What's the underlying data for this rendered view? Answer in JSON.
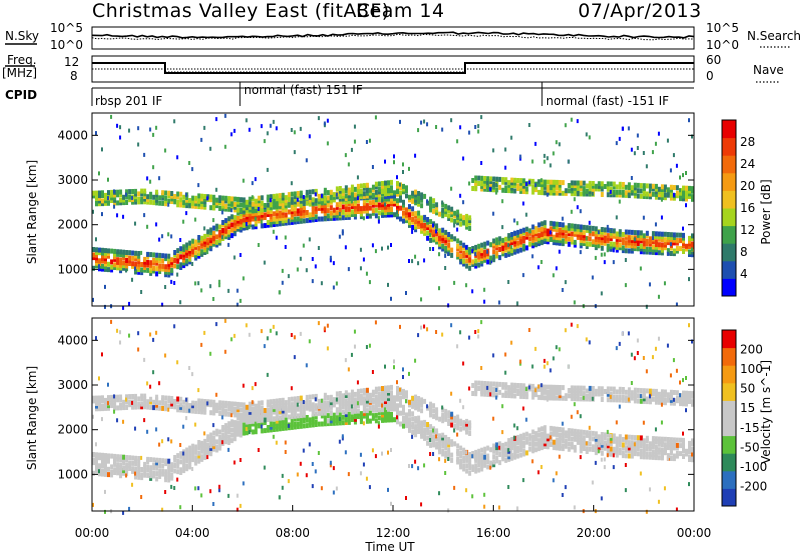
{
  "header": {
    "title": "Christmas Valley East (fitACF)",
    "beam": "Beam 14",
    "date": "07/Apr/2013"
  },
  "panels": {
    "nsky_label": "N.Sky",
    "nsearch_label": "N.Search",
    "nsky_ticks": [
      "10^5",
      "10^0"
    ],
    "nsearch_ticks": [
      "10^5",
      "10^0"
    ],
    "freq_label": "Freq.",
    "freq_unit": "[MHz]",
    "freq_ticks": [
      "12",
      "8"
    ],
    "nave_label": "Nave",
    "nave_ticks": [
      "60",
      "0"
    ],
    "cpid_label": "CPID",
    "cpid_segments": [
      "rbsp 201 IF",
      "normal (fast) 151 IF",
      "normal (fast) -151 IF"
    ]
  },
  "colors": {
    "power_scale": [
      "#0000ff",
      "#1e4fb0",
      "#2f7a6a",
      "#3fa24a",
      "#a6d41e",
      "#f0c020",
      "#f59a12",
      "#f26a0a",
      "#ee3a06",
      "#e80000"
    ],
    "velocity_scale": [
      "#1f3fb5",
      "#2c6fbf",
      "#2e8a5a",
      "#5cc23a",
      "#c8c8c8",
      "#c8c8c8",
      "#f0c020",
      "#f59a12",
      "#f26a0a",
      "#e80000"
    ]
  },
  "chart_data": [
    {
      "type": "heatmap",
      "name": "power",
      "ylabel": "Slant Range [km]",
      "yticks": [
        1000,
        2000,
        3000,
        4000
      ],
      "ylim": [
        180,
        4500
      ],
      "xlim": [
        "00:00",
        "24:00"
      ],
      "colorbar_label": "Power [dB]",
      "colorbar_ticks": [
        4,
        8,
        12,
        16,
        20,
        24,
        28
      ],
      "colorbar_range": [
        0,
        30
      ],
      "bands": [
        {
          "x": [
            0,
            3,
            6,
            9,
            12,
            15,
            18,
            21,
            24
          ],
          "y": [
            1300,
            1150,
            2200,
            2400,
            2500,
            1300,
            1900,
            1700,
            1600
          ]
        },
        {
          "x": [
            0,
            2,
            6,
            12,
            15
          ],
          "y": [
            2650,
            2700,
            2500,
            2900,
            2100
          ]
        },
        {
          "x": [
            15,
            18,
            21,
            24
          ],
          "y": [
            3000,
            2900,
            2850,
            2750
          ]
        }
      ]
    },
    {
      "type": "heatmap",
      "name": "velocity",
      "ylabel": "Slant Range [km]",
      "yticks": [
        1000,
        2000,
        3000,
        4000
      ],
      "ylim": [
        180,
        4500
      ],
      "xlabel": "Time UT",
      "xticks": [
        "00:00",
        "04:00",
        "08:00",
        "12:00",
        "16:00",
        "20:00",
        "00:00"
      ],
      "colorbar_label": "Velocity [m s^-1]",
      "colorbar_ticks": [
        200,
        100,
        50,
        15,
        -15,
        -50,
        -100,
        -200
      ],
      "colorbar_range": [
        -250,
        250
      ]
    }
  ]
}
